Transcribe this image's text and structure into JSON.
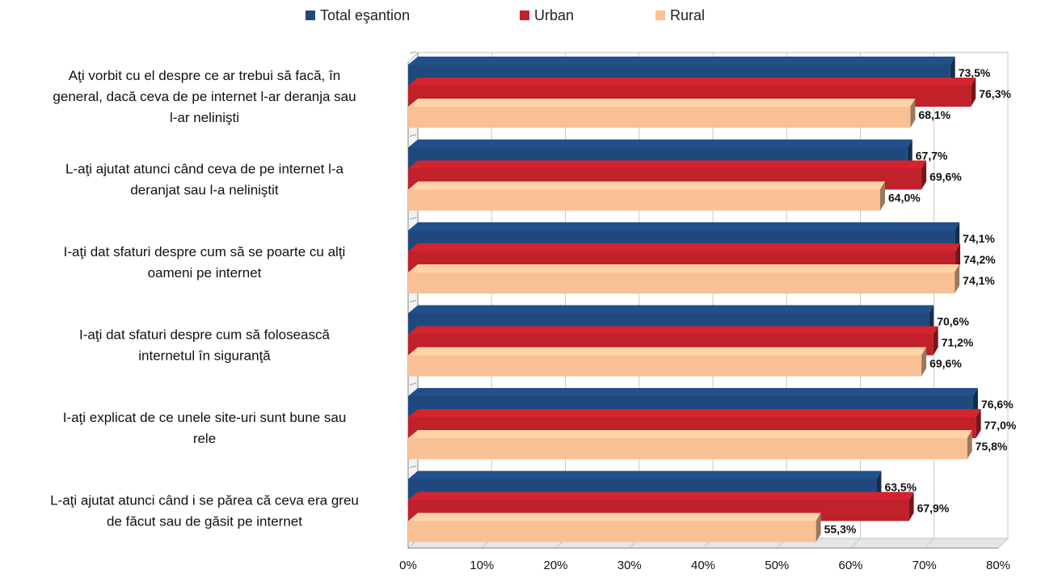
{
  "chart_data": {
    "type": "bar",
    "orientation": "horizontal",
    "categories": [
      "Aţi vorbit cu el despre ce ar trebui să facă, în general, dacă ceva de pe internet l-ar deranja sau l-ar nelinişti",
      "L-aţi ajutat atunci când ceva de pe internet l-a deranjat sau l-a neliniştit",
      "I-aţi dat sfaturi despre cum să se poarte cu alţi oameni pe internet",
      "I-aţi dat sfaturi despre cum să folosească internetul în siguranţă",
      "I-aţi explicat de ce unele site-uri sunt bune sau rele",
      "L-aţi ajutat atunci când i se părea că ceva era greu de făcut sau de găsit pe internet"
    ],
    "category_lines": [
      [
        "Aţi vorbit cu el despre ce ar trebui să facă, în",
        "general, dacă ceva de pe internet l-ar deranja sau",
        "l-ar nelinişti"
      ],
      [
        "L-aţi ajutat atunci când ceva de pe internet l-a",
        "deranjat sau l-a neliniştit"
      ],
      [
        "I-aţi dat sfaturi despre cum să se poarte cu alţi",
        "oameni pe internet"
      ],
      [
        "I-aţi dat sfaturi despre cum să folosească",
        "internetul în siguranţă"
      ],
      [
        "I-aţi explicat de ce unele site-uri sunt bune sau",
        "rele"
      ],
      [
        "L-aţi ajutat atunci când i se părea că ceva era greu",
        "de făcut sau de găsit pe internet"
      ]
    ],
    "series": [
      {
        "name": "Total eşantion",
        "color": "#1f497d",
        "values": [
          73.5,
          67.7,
          74.1,
          70.6,
          76.6,
          63.5
        ],
        "labels": [
          "73,5%",
          "67,7%",
          "74,1%",
          "70,6%",
          "76,6%",
          "63,5%"
        ]
      },
      {
        "name": "Urban",
        "color": "#c0212b",
        "values": [
          76.3,
          69.6,
          74.2,
          71.2,
          77.0,
          67.9
        ],
        "labels": [
          "76,3%",
          "69,6%",
          "74,2%",
          "71,2%",
          "77,0%",
          "67,9%"
        ]
      },
      {
        "name": "Rural",
        "color": "#f9c096",
        "values": [
          68.1,
          64.0,
          74.1,
          69.6,
          75.8,
          55.3
        ],
        "labels": [
          "68,1%",
          "64,0%",
          "74,1%",
          "69,6%",
          "75,8%",
          "55,3%"
        ]
      }
    ],
    "xlim": [
      0,
      80
    ],
    "x_ticks": [
      0,
      10,
      20,
      30,
      40,
      50,
      60,
      70,
      80
    ],
    "x_tick_labels": [
      "0%",
      "10%",
      "20%",
      "30%",
      "40%",
      "50%",
      "60%",
      "70%",
      "80%"
    ],
    "grid": true,
    "legend_position": "top",
    "style": "3d"
  }
}
